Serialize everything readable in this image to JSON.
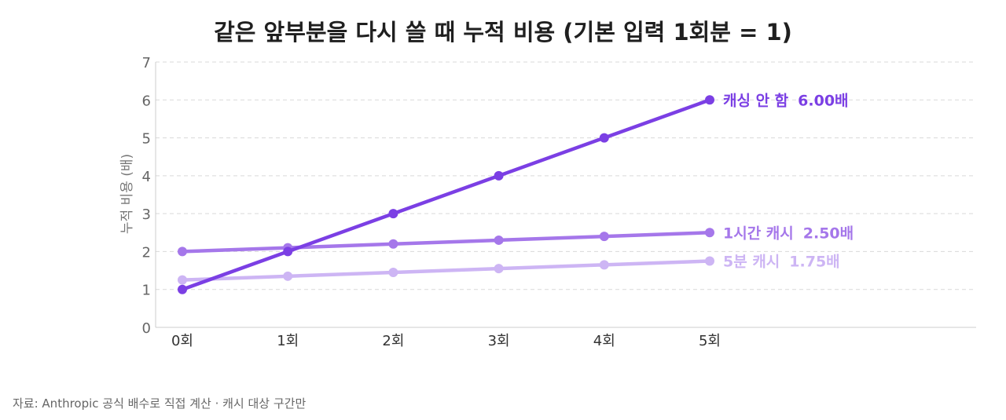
{
  "title": "같은 앞부분을 다시 쓸 때 누적 비용 (기본 입력 1회분 = 1)",
  "source": "자료: Anthropic 공식 배수로 직접 계산 · 캐시 대상 구간만",
  "chart_data": {
    "type": "line",
    "title": "같은 앞부분을 다시 쓸 때 누적 비용 (기본 입력 1회분 = 1)",
    "xlabel": "",
    "ylabel": "누적 비용 (배)",
    "categories": [
      "0회",
      "1회",
      "2회",
      "3회",
      "4회",
      "5회"
    ],
    "ylim": [
      0,
      7
    ],
    "yticks": [
      "0",
      "1",
      "2",
      "3",
      "4",
      "5",
      "6",
      "7"
    ],
    "grid": "horizontal dashed",
    "legend": "end-of-line labels",
    "series": [
      {
        "name": "캐싱 안 함",
        "values": [
          1,
          2,
          3,
          4,
          5,
          6
        ],
        "end_label": "6.00배",
        "color": "#7b3fe4"
      },
      {
        "name": "1시간 캐시",
        "values": [
          2,
          2.1,
          2.2,
          2.3,
          2.4,
          2.5
        ],
        "end_label": "2.50배",
        "color": "#a577ea"
      },
      {
        "name": "5분 캐시",
        "values": [
          1.25,
          1.35,
          1.45,
          1.55,
          1.65,
          1.75
        ],
        "end_label": "1.75배",
        "color": "#cdb5f4"
      }
    ]
  }
}
